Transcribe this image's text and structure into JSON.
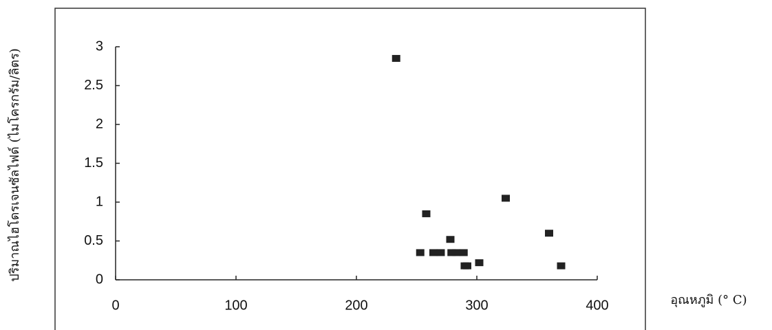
{
  "chart_data": {
    "type": "scatter",
    "x_label": "อุณหภูมิ (° C)",
    "y_label": "ปริมาณไฮโดรเจนซัลไฟด์ (ไมโครกรัม/ลิตร)",
    "x": [
      233,
      258,
      253,
      264,
      270,
      278,
      279,
      283,
      289,
      290,
      292,
      302,
      324,
      360,
      370
    ],
    "values": [
      2.85,
      0.85,
      0.35,
      0.35,
      0.35,
      0.52,
      0.35,
      0.35,
      0.35,
      0.18,
      0.18,
      0.22,
      1.05,
      0.6,
      0.18
    ],
    "color": "#222222",
    "xlim": [
      0,
      400
    ],
    "xticks": [
      0,
      100,
      200,
      300,
      400
    ],
    "ylim": [
      0,
      3
    ],
    "yticks": [
      0,
      0.5,
      1,
      1.5,
      2,
      2.5,
      3
    ]
  }
}
